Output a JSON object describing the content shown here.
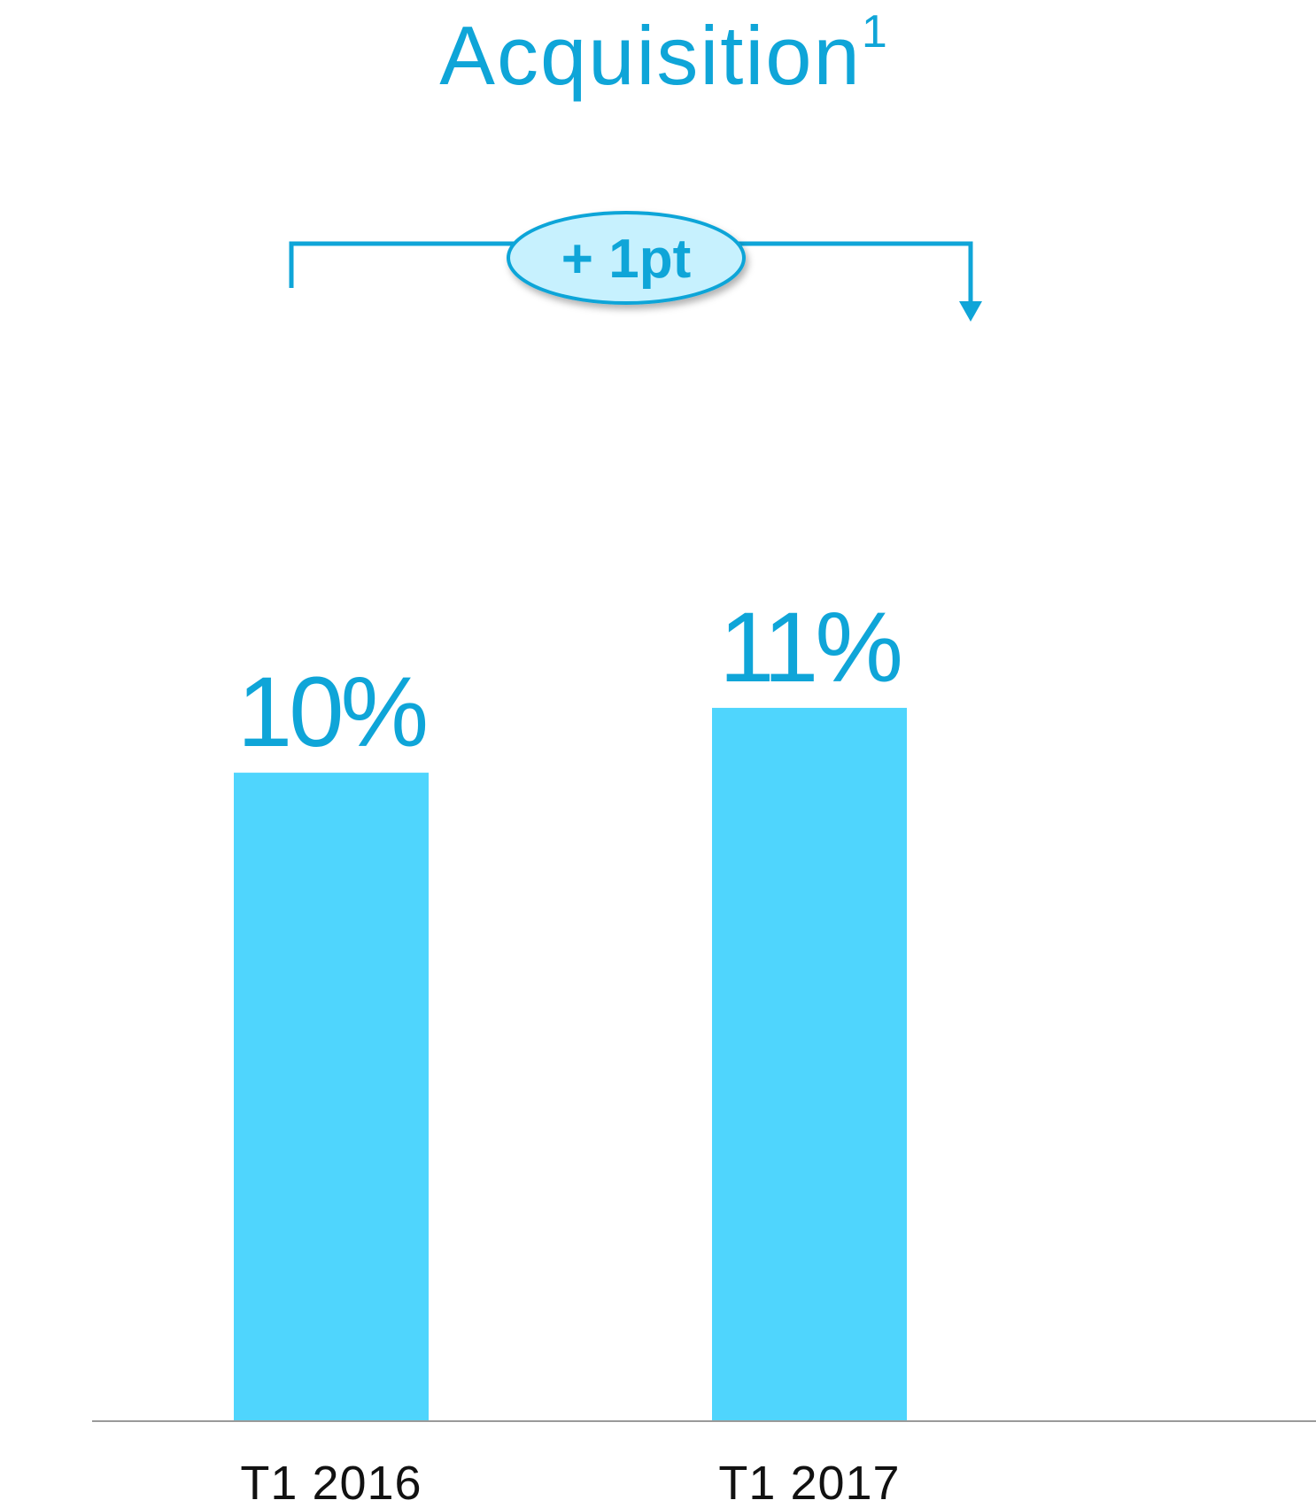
{
  "header": {
    "title": "Acquisition",
    "title_superscript": "1"
  },
  "annotation": {
    "delta_label": "+ 1pt"
  },
  "colors": {
    "accent": "#0fa5d8",
    "bar": "#4fd5fd",
    "bubble_fill": "#c7f1fe",
    "axis": "#9a9a9a"
  },
  "chart_data": {
    "type": "bar",
    "categories": [
      "T1 2016",
      "T1 2017"
    ],
    "values": [
      10,
      11
    ],
    "value_labels": [
      "10%",
      "11%"
    ],
    "ylim": [
      0,
      11.6
    ],
    "grid": false,
    "legend": "none"
  }
}
